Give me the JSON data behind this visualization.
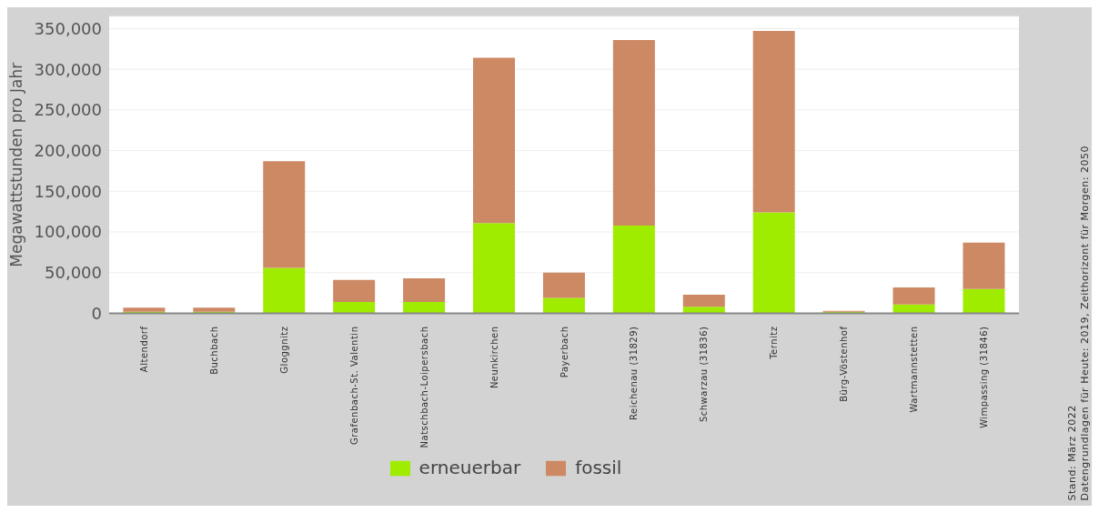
{
  "chart_data": {
    "type": "bar",
    "stacked": true,
    "ylabel": "Megawattstunden pro Jahr",
    "categories": [
      "Altendorf",
      "Buchbach",
      "Gloggnitz",
      "Grafenbach-St. Valentin",
      "Natschbach-Loipersbach",
      "Neunkirchen",
      "Payerbach",
      "Reichenau (31829)",
      "Schwarzau (31836)",
      "Ternitz",
      "Bürg-Vöstenhof",
      "Wartmannstetten",
      "Wimpassing (31846)"
    ],
    "series": [
      {
        "name": "erneuerbar",
        "color": "#9fec00",
        "values": [
          2000,
          2000,
          56000,
          14000,
          14000,
          111000,
          19000,
          108000,
          8000,
          124000,
          2000,
          11000,
          30000
        ]
      },
      {
        "name": "fossil",
        "color": "#cd8864",
        "values": [
          5000,
          5000,
          131000,
          27000,
          29000,
          203000,
          31000,
          228000,
          15000,
          223000,
          1000,
          21000,
          57000
        ]
      }
    ],
    "ylim": [
      0,
      365000
    ],
    "yticks": [
      0,
      {
        "value": 50000,
        "label": "50,000"
      },
      {
        "value": 100000,
        "label": "100,000"
      },
      {
        "value": 150000,
        "label": "150,000"
      },
      {
        "value": 200000,
        "label": "200,000"
      },
      {
        "value": 250000,
        "label": "250,000"
      },
      {
        "value": 300000,
        "label": "300,000"
      },
      {
        "value": 350000,
        "label": "350,000"
      }
    ],
    "grid": "y",
    "legend": "bottom",
    "annotations": [
      "Stand: März 2022",
      "Datengrundlagen für Heute: 2019, Zeithorizont für Morgen: 2050"
    ]
  }
}
